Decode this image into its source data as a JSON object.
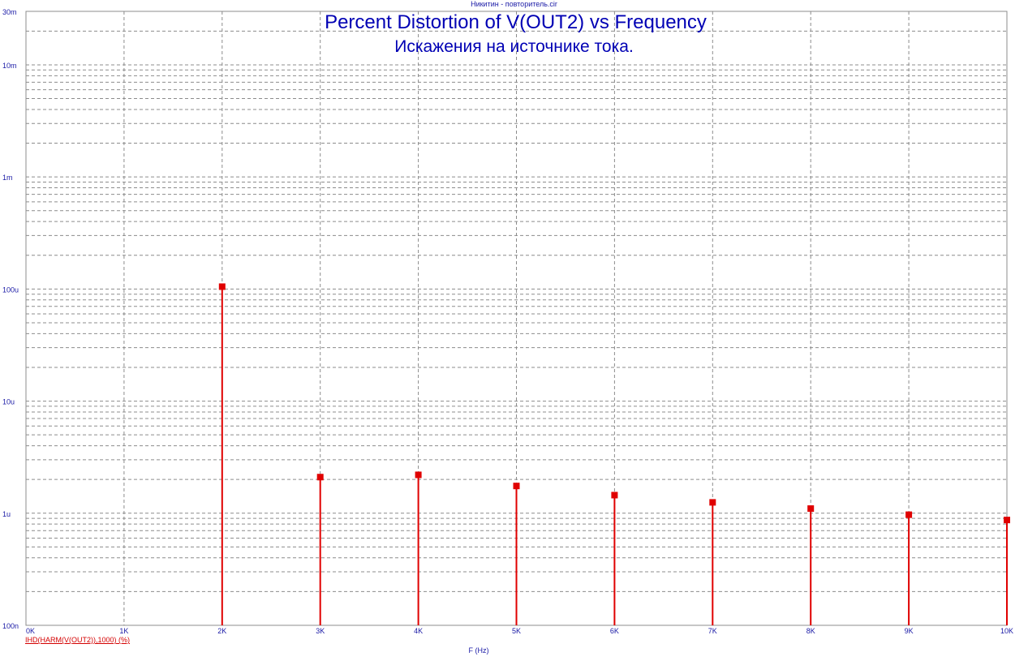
{
  "window": {
    "file_title": "Никитин - повторитель.cir"
  },
  "titles": {
    "line1": "Percent Distortion of V(OUT2) vs Frequency",
    "line2": "Искажения на источнике тока."
  },
  "trace_label": "IHD(HARM(V(OUT2)),1000) (%)",
  "colors": {
    "trace": "#e00000",
    "grid": "#8c8c8c",
    "axis_text": "#1a1aa6",
    "title": "#0000b4"
  },
  "chart_data": {
    "type": "stem",
    "title": "Percent Distortion of V(OUT2) vs Frequency",
    "subtitle": "Искажения на источнике тока.",
    "xlabel": "F (Hz)",
    "ylabel": "",
    "y_scale": "log",
    "xlim": [
      0,
      10000
    ],
    "ylim": [
      1e-07,
      0.03
    ],
    "grid": true,
    "x_ticks": [
      {
        "value": 0,
        "label": "0K"
      },
      {
        "value": 1000,
        "label": "1K"
      },
      {
        "value": 2000,
        "label": "2K"
      },
      {
        "value": 3000,
        "label": "3K"
      },
      {
        "value": 4000,
        "label": "4K"
      },
      {
        "value": 5000,
        "label": "5K"
      },
      {
        "value": 6000,
        "label": "6K"
      },
      {
        "value": 7000,
        "label": "7K"
      },
      {
        "value": 8000,
        "label": "8K"
      },
      {
        "value": 9000,
        "label": "9K"
      },
      {
        "value": 10000,
        "label": "10K"
      }
    ],
    "y_ticks": [
      {
        "value": 1e-07,
        "label": "100n"
      },
      {
        "value": 1e-06,
        "label": "1u"
      },
      {
        "value": 1e-05,
        "label": "10u"
      },
      {
        "value": 0.0001,
        "label": "100u"
      },
      {
        "value": 0.001,
        "label": "1m"
      },
      {
        "value": 0.01,
        "label": "10m"
      },
      {
        "value": 0.03,
        "label": "30m"
      }
    ],
    "series": [
      {
        "name": "IHD(HARM(V(OUT2)),1000) (%)",
        "x": [
          2000,
          3000,
          4000,
          5000,
          6000,
          7000,
          8000,
          9000,
          10000
        ],
        "y": [
          0.000105,
          2.1e-06,
          2.2e-06,
          1.75e-06,
          1.45e-06,
          1.25e-06,
          1.1e-06,
          9.7e-07,
          8.7e-07
        ]
      }
    ]
  }
}
